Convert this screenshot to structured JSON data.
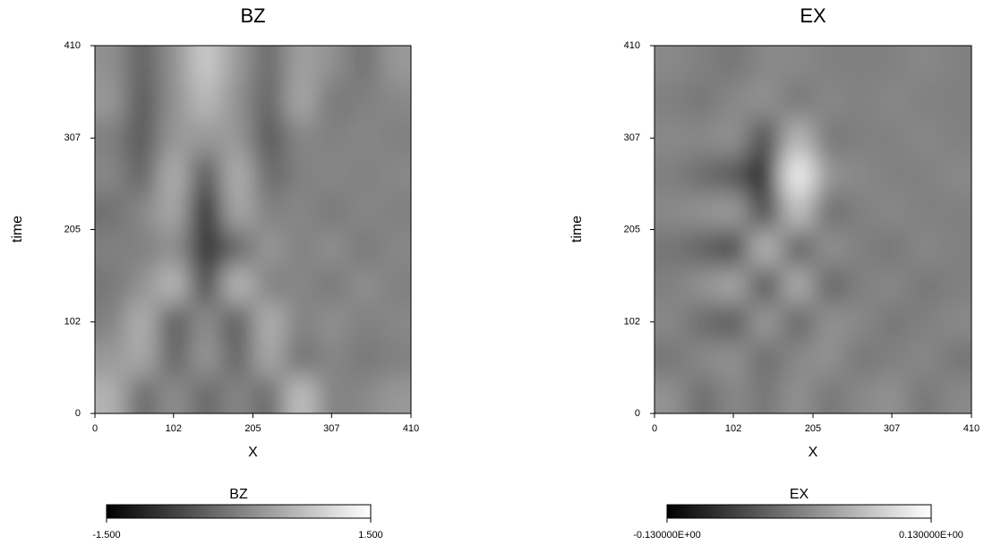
{
  "chart_data": [
    {
      "type": "heatmap",
      "title": "BZ",
      "x_label": "X",
      "y_label": "time",
      "xlim": [
        0,
        410
      ],
      "xticks": [
        0,
        102,
        205,
        307,
        410
      ],
      "ylim": [
        0,
        410
      ],
      "yticks": [
        0,
        102,
        205,
        307,
        410
      ],
      "zlim": [
        -1.5,
        1.5
      ],
      "colorbar_label": "BZ",
      "colorbar_ticks": [
        {
          "value": -1.5,
          "label": "-1.500"
        },
        {
          "value": 1.5,
          "label": "1.500"
        }
      ],
      "z": [
        [
          0.6,
          -0.3,
          0.2,
          -0.3,
          0.1,
          -0.3,
          0.8,
          0,
          0.1,
          0.3
        ],
        [
          0.3,
          0.5,
          -0.4,
          0.3,
          -0.4,
          0.5,
          -0.2,
          0.1,
          -0.1,
          0
        ],
        [
          0,
          0.6,
          -0.5,
          0.2,
          -0.5,
          0.6,
          0,
          0.2,
          0,
          0.1
        ],
        [
          -0.1,
          0.2,
          0.7,
          -0.8,
          0.7,
          0,
          0.1,
          -0.1,
          0.2,
          0
        ],
        [
          0,
          0,
          0.2,
          -1.0,
          -0.3,
          0.3,
          0,
          0.2,
          -0.1,
          0.1
        ],
        [
          -0.2,
          0.1,
          0.5,
          -1.5,
          0.5,
          0,
          0.1,
          -0.1,
          0.1,
          0
        ],
        [
          0.1,
          -0.4,
          0.6,
          -0.6,
          0.6,
          -0.3,
          0,
          0.1,
          0,
          0.1
        ],
        [
          0,
          -0.5,
          0.3,
          0.3,
          0.3,
          -0.5,
          0.1,
          0,
          0.1,
          0
        ],
        [
          0.3,
          -0.5,
          0.2,
          0.7,
          0.2,
          -0.4,
          0.5,
          -0.1,
          0,
          0.1
        ],
        [
          0.2,
          -0.4,
          0.2,
          0.9,
          0.3,
          -0.3,
          0.4,
          0.2,
          -0.2,
          0.3
        ]
      ]
    },
    {
      "type": "heatmap",
      "title": "EX",
      "x_label": "X",
      "y_label": "time",
      "xlim": [
        0,
        410
      ],
      "xticks": [
        0,
        102,
        205,
        307,
        410
      ],
      "ylim": [
        0,
        410
      ],
      "yticks": [
        0,
        102,
        205,
        307,
        410
      ],
      "zlim": [
        -0.13,
        0.13
      ],
      "colorbar_label": "EX",
      "colorbar_ticks": [
        {
          "value": -0.13,
          "label": "-0.130000E+00"
        },
        {
          "value": 0.13,
          "label": "0.130000E+00"
        }
      ],
      "z": [
        [
          0.02,
          -0.02,
          0.01,
          -0.01,
          0.02,
          -0.01,
          0.01,
          0.02,
          -0.01,
          0.01
        ],
        [
          -0.01,
          0.01,
          0.02,
          -0.02,
          0.01,
          0.02,
          -0.01,
          0,
          0.01,
          -0.01
        ],
        [
          0.01,
          -0.02,
          -0.04,
          0.03,
          -0.03,
          0.02,
          0.01,
          -0.01,
          0,
          0.01
        ],
        [
          0,
          0.02,
          0.04,
          -0.05,
          0.05,
          -0.03,
          0,
          0.01,
          -0.01,
          0
        ],
        [
          -0.01,
          -0.03,
          -0.06,
          0.06,
          -0.04,
          0.02,
          0,
          -0.01,
          0.01,
          0
        ],
        [
          0.01,
          0.02,
          0.03,
          -0.07,
          0.07,
          -0.02,
          0,
          0.01,
          0,
          0
        ],
        [
          0,
          -0.02,
          -0.04,
          -0.12,
          0.12,
          0.02,
          0.01,
          0,
          0,
          0.01
        ],
        [
          0.01,
          0.01,
          0.02,
          -0.06,
          0.06,
          -0.01,
          0,
          0,
          0.01,
          0
        ],
        [
          0,
          -0.01,
          0.01,
          0.02,
          -0.01,
          0.01,
          0,
          0.01,
          0,
          0
        ],
        [
          0.01,
          0,
          -0.01,
          0.01,
          0.01,
          0,
          0,
          0,
          0.01,
          0
        ]
      ]
    }
  ]
}
